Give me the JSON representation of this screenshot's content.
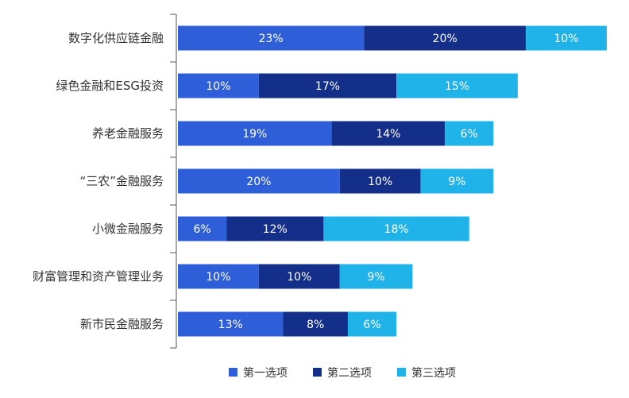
{
  "chart_data": {
    "type": "bar",
    "orientation": "horizontal",
    "stacked": true,
    "categories": [
      "数字化供应链金融",
      "绿色金融和ESG投资",
      "养老金融服务",
      "“三农”金融服务",
      "小微金融服务",
      "财富管理和资产管理业务",
      "新市民金融服务"
    ],
    "series": [
      {
        "name": "第一选项",
        "color": "#2f5fd8",
        "values": [
          23,
          10,
          19,
          20,
          6,
          10,
          13
        ],
        "labels": [
          "23%",
          "10%",
          "19%",
          "20%",
          "6%",
          "10%",
          "13%"
        ]
      },
      {
        "name": "第二选项",
        "color": "#142f8a",
        "values": [
          20,
          17,
          14,
          10,
          12,
          10,
          8
        ],
        "labels": [
          "20%",
          "17%",
          "14%",
          "10%",
          "12%",
          "10%",
          "8%"
        ]
      },
      {
        "name": "第三选项",
        "color": "#1fb3ea",
        "values": [
          10,
          15,
          6,
          9,
          18,
          9,
          6
        ],
        "labels": [
          "10%",
          "15%",
          "6%",
          "9%",
          "18%",
          "9%",
          "6%"
        ]
      }
    ],
    "xlim": [
      0,
      53
    ],
    "grid": false,
    "legend_position": "bottom-center"
  }
}
